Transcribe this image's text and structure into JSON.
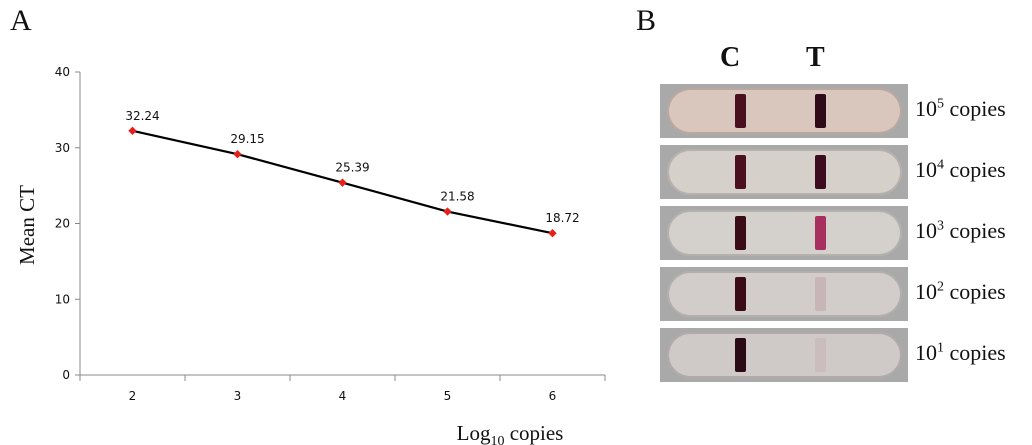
{
  "panels": {
    "a_label": "A",
    "b_label": "B"
  },
  "chart_data": {
    "type": "line",
    "x": [
      2,
      3,
      4,
      5,
      6
    ],
    "values": [
      32.24,
      29.15,
      25.39,
      21.58,
      18.72
    ],
    "data_labels": [
      "32.24",
      "29.15",
      "25.39",
      "21.58",
      "18.72"
    ],
    "ylabel": "Mean CT",
    "xlabel": {
      "base": "Log",
      "sub": "10",
      "rest": " copies"
    },
    "yticks": [
      "0",
      "10",
      "20",
      "30",
      "40"
    ],
    "xticks": [
      "2",
      "3",
      "4",
      "5",
      "6"
    ],
    "ylim": [
      0,
      40
    ],
    "grid": false,
    "colors": {
      "line": "#000000",
      "marker": "#e8201c"
    }
  },
  "strips": {
    "col_c": "C",
    "col_t": "T",
    "rows": [
      {
        "base": "10",
        "exp": "5",
        "unit": " copies",
        "t_intensity": 1.0,
        "bg": "#d9c6bd",
        "c_color": "#4a1020",
        "t_color": "#2f0a18"
      },
      {
        "base": "10",
        "exp": "4",
        "unit": " copies",
        "t_intensity": 0.9,
        "bg": "#d6d0cb",
        "c_color": "#4a1020",
        "t_color": "#3d0c1e"
      },
      {
        "base": "10",
        "exp": "3",
        "unit": " copies",
        "t_intensity": 0.6,
        "bg": "#d4d0cc",
        "c_color": "#3a0c18",
        "t_color": "#a8305e"
      },
      {
        "base": "10",
        "exp": "2",
        "unit": " copies",
        "t_intensity": 0.15,
        "bg": "#d2cdca",
        "c_color": "#3a0c18",
        "t_color": "#c8b5b8"
      },
      {
        "base": "10",
        "exp": "1",
        "unit": " copies",
        "t_intensity": 0.05,
        "bg": "#cfc9c8",
        "c_color": "#2a0a14",
        "t_color": "#cbbcbe"
      }
    ]
  }
}
